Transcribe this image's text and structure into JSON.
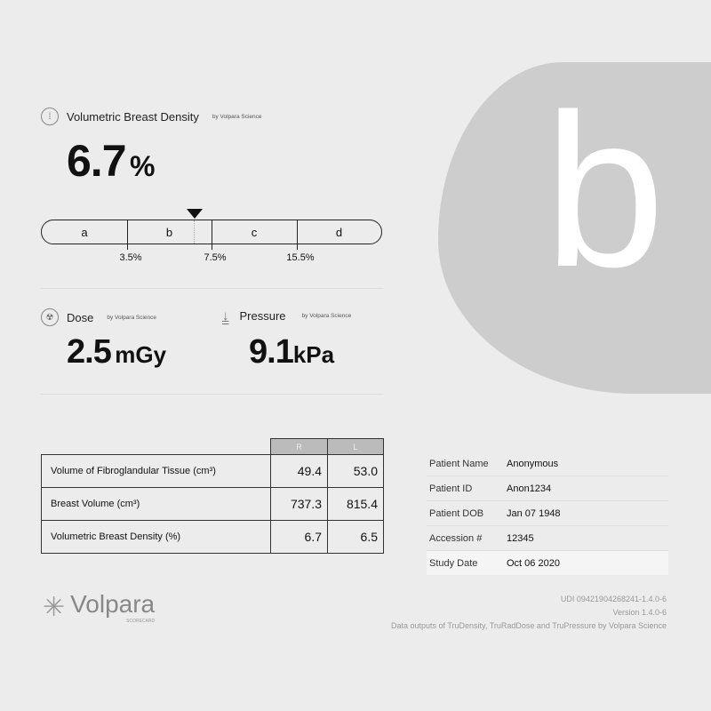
{
  "grade": "b",
  "density": {
    "title": "Volumetric Breast Density",
    "by": "by Volpara Science",
    "value": "6.7",
    "unit": "%",
    "scale": {
      "segments": [
        "a",
        "b",
        "c",
        "d"
      ],
      "ticks": [
        "3.5%",
        "7.5%",
        "15.5%"
      ]
    },
    "marker_value": 6.7
  },
  "dose": {
    "title": "Dose",
    "by": "by Volpara Science",
    "value": "2.5",
    "unit": "mGy"
  },
  "pressure": {
    "title": "Pressure",
    "by": "by Volpara Science",
    "value": "9.1",
    "unit": "kPa"
  },
  "table": {
    "headers": [
      "R",
      "L"
    ],
    "rows": [
      {
        "label": "Volume of Fibroglandular Tissue (cm³)",
        "r": "49.4",
        "l": "53.0"
      },
      {
        "label": "Breast Volume (cm³)",
        "r": "737.3",
        "l": "815.4"
      },
      {
        "label": "Volumetric Breast Density (%)",
        "r": "6.7",
        "l": "6.5"
      }
    ]
  },
  "patient": [
    {
      "label": "Patient Name",
      "value": "Anonymous"
    },
    {
      "label": "Patient ID",
      "value": "Anon1234"
    },
    {
      "label": "Patient DOB",
      "value": "Jan 07 1948"
    },
    {
      "label": "Accession #",
      "value": "12345"
    },
    {
      "label": "Study Date",
      "value": "Oct 06 2020"
    }
  ],
  "logo": {
    "name": "Volpara",
    "sub": "SCORECARD"
  },
  "footer": {
    "udi": "UDI  09421904268241-1.4.0-6",
    "version": "Version 1.4.0-6",
    "note": "Data outputs of TruDensity, TruRadDose and TruPressure by Volpara Science"
  }
}
